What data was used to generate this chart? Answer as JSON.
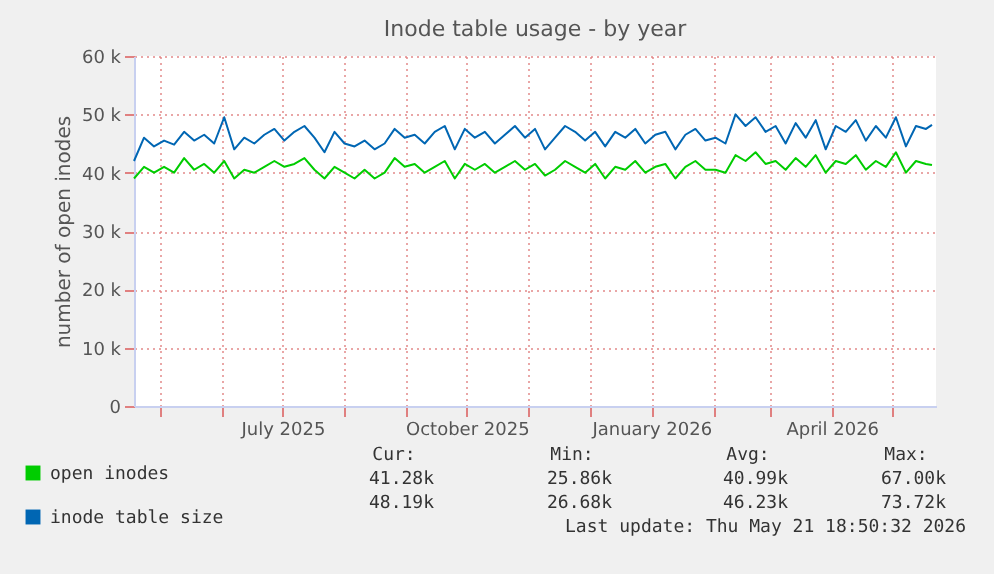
{
  "chart_data": {
    "type": "line",
    "title": "Inode table usage - by year",
    "ylabel": "number of open inodes",
    "x": [
      "2025-04-18",
      "2025-04-23",
      "2025-04-28",
      "2025-05-03",
      "2025-05-08",
      "2025-05-13",
      "2025-05-18",
      "2025-05-23",
      "2025-05-28",
      "2025-06-02",
      "2025-06-07",
      "2025-06-12",
      "2025-06-17",
      "2025-06-22",
      "2025-06-27",
      "2025-07-02",
      "2025-07-07",
      "2025-07-12",
      "2025-07-17",
      "2025-07-22",
      "2025-07-27",
      "2025-08-01",
      "2025-08-06",
      "2025-08-11",
      "2025-08-16",
      "2025-08-21",
      "2025-08-26",
      "2025-08-31",
      "2025-09-05",
      "2025-09-10",
      "2025-09-15",
      "2025-09-20",
      "2025-09-25",
      "2025-09-30",
      "2025-10-05",
      "2025-10-10",
      "2025-10-15",
      "2025-10-20",
      "2025-10-25",
      "2025-10-30",
      "2025-11-04",
      "2025-11-09",
      "2025-11-14",
      "2025-11-19",
      "2025-11-24",
      "2025-11-29",
      "2025-12-04",
      "2025-12-09",
      "2025-12-14",
      "2025-12-19",
      "2025-12-24",
      "2025-12-29",
      "2026-01-03",
      "2026-01-08",
      "2026-01-13",
      "2026-01-18",
      "2026-01-23",
      "2026-01-28",
      "2026-02-02",
      "2026-02-07",
      "2026-02-12",
      "2026-02-17",
      "2026-02-22",
      "2026-02-27",
      "2026-03-04",
      "2026-03-09",
      "2026-03-14",
      "2026-03-19",
      "2026-03-24",
      "2026-03-29",
      "2026-04-03",
      "2026-04-08",
      "2026-04-13",
      "2026-04-18",
      "2026-04-23",
      "2026-04-28",
      "2026-05-03",
      "2026-05-08",
      "2026-05-13",
      "2026-05-18",
      "2026-05-21"
    ],
    "series": [
      {
        "name": "open inodes",
        "color": "#00cc00",
        "values": [
          39000,
          41000,
          40000,
          41000,
          40000,
          42500,
          40500,
          41500,
          40000,
          42000,
          39000,
          40500,
          40000,
          41000,
          42000,
          41000,
          41500,
          42500,
          40500,
          39000,
          41000,
          40000,
          39000,
          40500,
          39000,
          40000,
          42500,
          41000,
          41500,
          40000,
          41000,
          42000,
          39000,
          41500,
          40500,
          41500,
          40000,
          41000,
          42000,
          40500,
          41500,
          39500,
          40500,
          42000,
          41000,
          40000,
          41500,
          39000,
          41000,
          40500,
          42000,
          40000,
          41000,
          41500,
          39000,
          41000,
          42000,
          40500,
          40500,
          40000,
          43000,
          42000,
          43500,
          41500,
          42000,
          40500,
          42500,
          41000,
          43000,
          40000,
          42000,
          41500,
          43000,
          40500,
          42000,
          41000,
          43500,
          40000,
          42000,
          41500,
          41300
        ]
      },
      {
        "name": "inode table size",
        "color": "#0066b3",
        "values": [
          42000,
          46000,
          44500,
          45500,
          44800,
          47000,
          45500,
          46500,
          45000,
          49500,
          44000,
          46000,
          45000,
          46500,
          47500,
          45500,
          47000,
          48000,
          46000,
          43500,
          47000,
          45000,
          44500,
          45500,
          44000,
          45000,
          47500,
          46000,
          46500,
          45000,
          47000,
          48000,
          44000,
          47500,
          46000,
          47000,
          45000,
          46500,
          48000,
          46000,
          47500,
          44000,
          46000,
          48000,
          47000,
          45500,
          47000,
          44500,
          47000,
          46000,
          47500,
          45000,
          46500,
          47000,
          44000,
          46500,
          47500,
          45500,
          46000,
          45000,
          50000,
          48000,
          49500,
          47000,
          48000,
          45000,
          48500,
          46000,
          49000,
          44000,
          48000,
          47000,
          49000,
          45500,
          48000,
          46000,
          49500,
          44500,
          48000,
          47500,
          48200
        ]
      }
    ],
    "xlim": [
      "2025-04-18",
      "2026-05-23"
    ],
    "xticks": [
      {
        "value": "2025-05-01",
        "label": null
      },
      {
        "value": "2025-06-01",
        "label": null
      },
      {
        "value": "2025-07-01",
        "label": "July 2025"
      },
      {
        "value": "2025-08-01",
        "label": null
      },
      {
        "value": "2025-09-01",
        "label": null
      },
      {
        "value": "2025-10-01",
        "label": "October 2025"
      },
      {
        "value": "2025-11-01",
        "label": null
      },
      {
        "value": "2025-12-01",
        "label": null
      },
      {
        "value": "2026-01-01",
        "label": "January 2026"
      },
      {
        "value": "2026-02-01",
        "label": null
      },
      {
        "value": "2026-03-01",
        "label": null
      },
      {
        "value": "2026-04-01",
        "label": "April 2026"
      },
      {
        "value": "2026-05-01",
        "label": null
      }
    ],
    "ylim": [
      0,
      60000
    ],
    "yticks": [
      0,
      {
        "value": 10000,
        "label": "10 k"
      },
      {
        "value": 20000,
        "label": "20 k"
      },
      {
        "value": 30000,
        "label": "30 k"
      },
      {
        "value": 40000,
        "label": "40 k"
      },
      {
        "value": 50000,
        "label": "50 k"
      },
      {
        "value": 60000,
        "label": "60 k"
      }
    ],
    "grid": true,
    "legend": "bottom",
    "annotations": [
      "Cur:",
      "Min:",
      "Avg:",
      "Max:",
      "41.28k",
      "25.86k",
      "40.99k",
      "67.00k",
      "48.19k",
      "26.68k",
      "46.23k",
      "73.72k",
      "Last update: Thu May 21 18:50:32 2026"
    ]
  }
}
